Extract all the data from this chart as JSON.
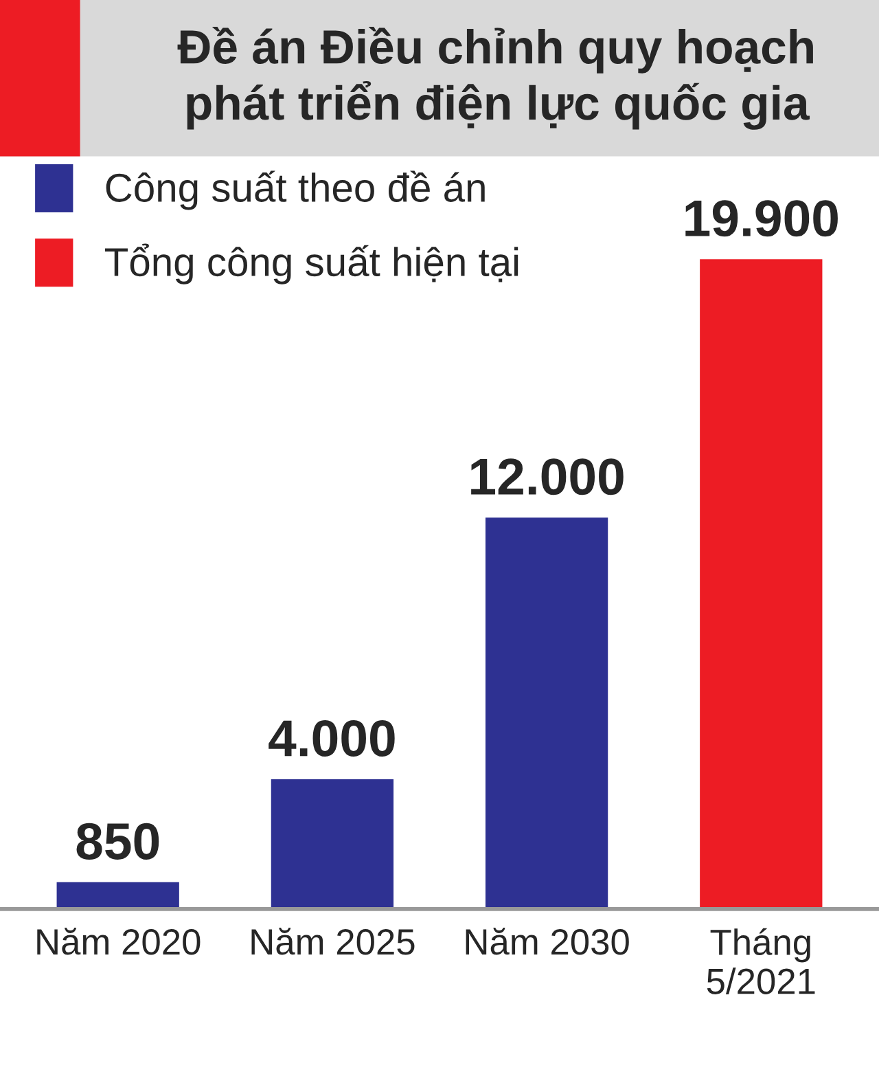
{
  "chart_data": {
    "type": "bar",
    "title": "Đề án Điều chỉnh quy hoạch\nphát triển điện lực quốc gia",
    "categories": [
      "Năm 2020",
      "Năm 2025",
      "Năm 2030",
      "Tháng\n5/2021"
    ],
    "series": [
      {
        "name": "Công suất theo đề án",
        "color": "#2e3192",
        "values": [
          850,
          4000,
          12000,
          null
        ],
        "value_labels": [
          "850",
          "4.000",
          "12.000",
          null
        ]
      },
      {
        "name": "Tổng công suất hiện tại",
        "color": "#ed1c24",
        "values": [
          null,
          null,
          null,
          19900
        ],
        "value_labels": [
          null,
          null,
          null,
          "19.900"
        ]
      }
    ],
    "stacked": true,
    "legend": "top left",
    "grid": false
  }
}
